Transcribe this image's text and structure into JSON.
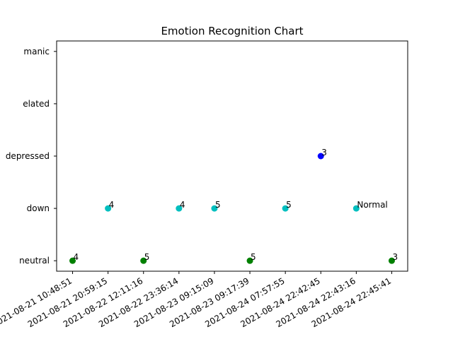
{
  "chart_data": {
    "type": "scatter",
    "title": "Emotion Recognition Chart",
    "xlabel": "",
    "ylabel": "",
    "y_categories": [
      "neutral",
      "down",
      "depressed",
      "elated",
      "manic"
    ],
    "x": [
      "2021-08-21 10:48:51",
      "2021-08-21 20:59:15",
      "2021-08-22 12:11:16",
      "2021-08-22 23:36:14",
      "2021-08-23 09:15:09",
      "2021-08-23 09:17:39",
      "2021-08-24 07:57:55",
      "2021-08-24 22:42:45",
      "2021-08-24 22:43:16",
      "2021-08-24 22:45:41"
    ],
    "points": [
      {
        "x": "2021-08-21 10:48:51",
        "y": "neutral",
        "label": "4",
        "color": "#008000"
      },
      {
        "x": "2021-08-21 20:59:15",
        "y": "down",
        "label": "4",
        "color": "#00bfbf"
      },
      {
        "x": "2021-08-22 12:11:16",
        "y": "neutral",
        "label": "5",
        "color": "#008000"
      },
      {
        "x": "2021-08-22 23:36:14",
        "y": "down",
        "label": "4",
        "color": "#00bfbf"
      },
      {
        "x": "2021-08-23 09:15:09",
        "y": "down",
        "label": "5",
        "color": "#00bfbf"
      },
      {
        "x": "2021-08-23 09:17:39",
        "y": "neutral",
        "label": "5",
        "color": "#008000"
      },
      {
        "x": "2021-08-24 07:57:55",
        "y": "down",
        "label": "5",
        "color": "#00bfbf"
      },
      {
        "x": "2021-08-24 22:42:45",
        "y": "depressed",
        "label": "3",
        "color": "#0000ff"
      },
      {
        "x": "2021-08-24 22:43:16",
        "y": "down",
        "label": "Normal",
        "color": "#00bfbf"
      },
      {
        "x": "2021-08-24 22:45:41",
        "y": "neutral",
        "label": "3",
        "color": "#008000"
      }
    ],
    "grid": false,
    "legend": "none"
  }
}
